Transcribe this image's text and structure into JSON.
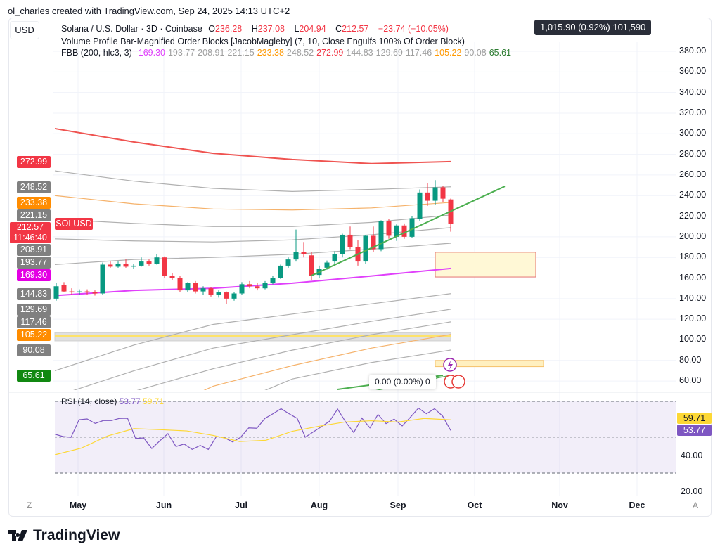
{
  "credit": "ol_charles created with TradingView.com, Sep 24, 2025 14:13 UTC+2",
  "currency_button": "USD",
  "legend": {
    "symbol": "Solana / U.S. Dollar · 3D · Coinbase",
    "o_label": "O",
    "o": "236.28",
    "h_label": "H",
    "h": "237.08",
    "l_label": "L",
    "l": "204.94",
    "c_label": "C",
    "c": "212.57",
    "change": "−23.74 (−10.05%)",
    "indicator1": "Volume Profile Bar-Magnified Order Blocks [JacobMagleby] (7, 10, Close Engulfs 100% Of Order Block)",
    "indicator2": "FBB (200, hlc3, 3)",
    "fbb_values": [
      {
        "v": "169.30",
        "color": "#e040fb"
      },
      {
        "v": "193.77",
        "color": "#9e9e9e"
      },
      {
        "v": "208.91",
        "color": "#9e9e9e"
      },
      {
        "v": "221.15",
        "color": "#9e9e9e"
      },
      {
        "v": "233.38",
        "color": "#ff9800"
      },
      {
        "v": "248.52",
        "color": "#9e9e9e"
      },
      {
        "v": "272.99",
        "color": "#f23645"
      },
      {
        "v": "144.83",
        "color": "#9e9e9e"
      },
      {
        "v": "129.69",
        "color": "#9e9e9e"
      },
      {
        "v": "117.46",
        "color": "#9e9e9e"
      },
      {
        "v": "105.22",
        "color": "#ff9800"
      },
      {
        "v": "90.08",
        "color": "#9e9e9e"
      },
      {
        "v": "65.61",
        "color": "#2e7d32"
      }
    ]
  },
  "tooltip": "1,015.90 (0.92%) 101,590",
  "tooltip2": "0.00 (0.00%) 0",
  "symbol_label": "SOLUSD",
  "countdown": "11:46:40",
  "price_ticks": [
    "380.00",
    "360.00",
    "340.00",
    "320.00",
    "300.00",
    "280.00",
    "260.00",
    "240.00",
    "220.00",
    "200.00",
    "180.00",
    "160.00",
    "140.00",
    "120.00",
    "100.00",
    "80.00",
    "60.00"
  ],
  "price_badges": [
    {
      "v": "272.99",
      "color": "#f23645"
    },
    {
      "v": "248.52",
      "color": "#808080"
    },
    {
      "v": "233.38",
      "color": "#ff8c00"
    },
    {
      "v": "221.15",
      "color": "#808080"
    },
    {
      "v": "212.57",
      "color": "#f23645"
    },
    {
      "v": "208.91",
      "color": "#808080"
    },
    {
      "v": "193.77",
      "color": "#808080"
    },
    {
      "v": "169.30",
      "color": "#e400e4"
    },
    {
      "v": "144.83",
      "color": "#808080"
    },
    {
      "v": "129.69",
      "color": "#808080"
    },
    {
      "v": "117.46",
      "color": "#808080"
    },
    {
      "v": "105.22",
      "color": "#ff8c00"
    },
    {
      "v": "90.08",
      "color": "#808080"
    },
    {
      "v": "65.61",
      "color": "#118811"
    }
  ],
  "rsi": {
    "label": "RSI (14, close)",
    "value": "53.77",
    "ma_value": "59.71",
    "ticks": [
      "40.00",
      "20.00"
    ],
    "line_color": "#7e57c2",
    "ma_color": "#fdd835"
  },
  "time_axis": [
    "May",
    "Jun",
    "Jul",
    "Aug",
    "Sep",
    "Oct",
    "Nov",
    "Dec"
  ],
  "axis_buttons": {
    "left": "Z",
    "right": "A"
  },
  "brand": "TradingView",
  "colors": {
    "up": "#089981",
    "down": "#f23645",
    "trendline": "#4caf50"
  },
  "chart_data": {
    "type": "candlestick",
    "ylim": [
      60,
      380
    ],
    "candles": [
      [
        140,
        155,
        138,
        152
      ],
      [
        153,
        156,
        146,
        147
      ],
      [
        147,
        150,
        144,
        146
      ],
      [
        146,
        149,
        144,
        147
      ],
      [
        147,
        149,
        144,
        146
      ],
      [
        146,
        148,
        143,
        145
      ],
      [
        145,
        175,
        144,
        173
      ],
      [
        173,
        176,
        170,
        171
      ],
      [
        171,
        176,
        170,
        174
      ],
      [
        174,
        178,
        170,
        171
      ],
      [
        171,
        174,
        169,
        172
      ],
      [
        172,
        180,
        171,
        176
      ],
      [
        176,
        178,
        172,
        174
      ],
      [
        174,
        183,
        173,
        180
      ],
      [
        180,
        181,
        160,
        162
      ],
      [
        162,
        165,
        158,
        160
      ],
      [
        160,
        162,
        146,
        148
      ],
      [
        148,
        156,
        146,
        155
      ],
      [
        155,
        157,
        145,
        147
      ],
      [
        147,
        152,
        144,
        150
      ],
      [
        150,
        151,
        142,
        144
      ],
      [
        144,
        148,
        141,
        146
      ],
      [
        146,
        147,
        135,
        140
      ],
      [
        140,
        146,
        138,
        145
      ],
      [
        145,
        156,
        144,
        154
      ],
      [
        154,
        157,
        150,
        152
      ],
      [
        152,
        155,
        148,
        150
      ],
      [
        150,
        157,
        149,
        155
      ],
      [
        155,
        162,
        154,
        160
      ],
      [
        160,
        173,
        159,
        172
      ],
      [
        172,
        180,
        170,
        178
      ],
      [
        178,
        207,
        176,
        185
      ],
      [
        185,
        195,
        180,
        183
      ],
      [
        182,
        185,
        158,
        162
      ],
      [
        163,
        172,
        160,
        169
      ],
      [
        170,
        177,
        168,
        175
      ],
      [
        176,
        186,
        174,
        183
      ],
      [
        183,
        203,
        180,
        202
      ],
      [
        202,
        210,
        188,
        190
      ],
      [
        190,
        197,
        172,
        176
      ],
      [
        176,
        202,
        174,
        201
      ],
      [
        201,
        210,
        185,
        188
      ],
      [
        188,
        216,
        186,
        215
      ],
      [
        215,
        217,
        198,
        201
      ],
      [
        200,
        212,
        196,
        211
      ],
      [
        211,
        213,
        198,
        200
      ],
      [
        200,
        220,
        199,
        218
      ],
      [
        217,
        246,
        215,
        243
      ],
      [
        243,
        252,
        230,
        235
      ],
      [
        235,
        255,
        231,
        248
      ],
      [
        248,
        249,
        234,
        237
      ],
      [
        236.28,
        237.08,
        204.94,
        212.57
      ]
    ],
    "bands": [
      {
        "color": "#ef5350",
        "values": [
          305,
          292,
          281,
          275,
          271,
          272.99
        ]
      },
      {
        "color": "#b0b0b0",
        "values": [
          264,
          254,
          247,
          244,
          246,
          248.52
        ]
      },
      {
        "color": "#f5b26b",
        "values": [
          240,
          232,
          227,
          226,
          228,
          233.38
        ]
      },
      {
        "color": "#b0b0b0",
        "values": [
          217,
          213,
          210,
          210,
          214,
          221.15
        ]
      },
      {
        "color": "#b0b0b0",
        "values": [
          198,
          196,
          195,
          197,
          202,
          208.91
        ]
      },
      {
        "color": "#b0b0b0",
        "values": [
          173,
          178,
          180,
          183,
          188,
          193.77
        ]
      },
      {
        "color": "#e040fb",
        "values": [
          143,
          148,
          150,
          155,
          162,
          169.3
        ]
      },
      {
        "color": "#b0b0b0",
        "values": [
          70,
          95,
          115,
          125,
          135,
          144.83
        ]
      },
      {
        "color": "#b0b0b0",
        "values": [
          45,
          70,
          92,
          105,
          118,
          129.69
        ]
      },
      {
        "color": "#b0b0b0",
        "values": [
          20,
          50,
          72,
          90,
          105,
          117.46
        ]
      },
      {
        "color": "#f5b26b",
        "values": [
          0,
          20,
          55,
          75,
          92,
          105.22
        ]
      },
      {
        "color": "#b0b0b0",
        "values": [
          0,
          0,
          30,
          62,
          78,
          90.08
        ]
      },
      {
        "color": "#4caf50",
        "values": [
          0,
          0,
          0,
          0,
          50,
          65.61
        ]
      }
    ],
    "order_blocks": [
      {
        "top": 185,
        "bottom": 161,
        "fill": "#fff8d6",
        "border": "#e57373"
      },
      {
        "top": 80,
        "bottom": 74,
        "fill": "#fff0c0",
        "border": "#f5c26b"
      },
      {
        "top": 107,
        "bottom": 99,
        "fill": "#e0e0e0",
        "border": "#d0d0d0"
      }
    ],
    "trendline": [
      162,
      249
    ],
    "last_price": 212.57,
    "rsi_values": [
      51.7,
      50.4,
      49.9,
      59.8,
      60.2,
      57.7,
      59.3,
      59.3,
      60.5,
      60.6,
      49.3,
      49.6,
      43.7,
      48.0,
      52.0,
      44.8,
      46.2,
      43.2,
      45.4,
      43.2,
      50.4,
      49.7,
      47.4,
      50.0,
      55.2,
      55.0,
      60.5,
      63.1,
      65.9,
      63.1,
      60.5,
      50.0,
      53.0,
      55.9,
      58.9,
      65.7,
      58.5,
      52.6,
      60.7,
      55.2,
      62.7,
      57.6,
      60.1,
      56.3,
      61.1,
      66.2,
      63.1,
      65.9,
      61.8,
      53.77
    ],
    "rsi_ma_values": [
      40.2,
      43.9,
      50.7,
      54.8,
      54.2,
      53.5,
      51.0,
      47.6,
      48.3,
      53.3,
      56.1,
      58.5,
      59.2,
      58.5,
      60.5,
      59.71
    ],
    "rsi_levels": [
      70,
      50,
      30
    ]
  }
}
